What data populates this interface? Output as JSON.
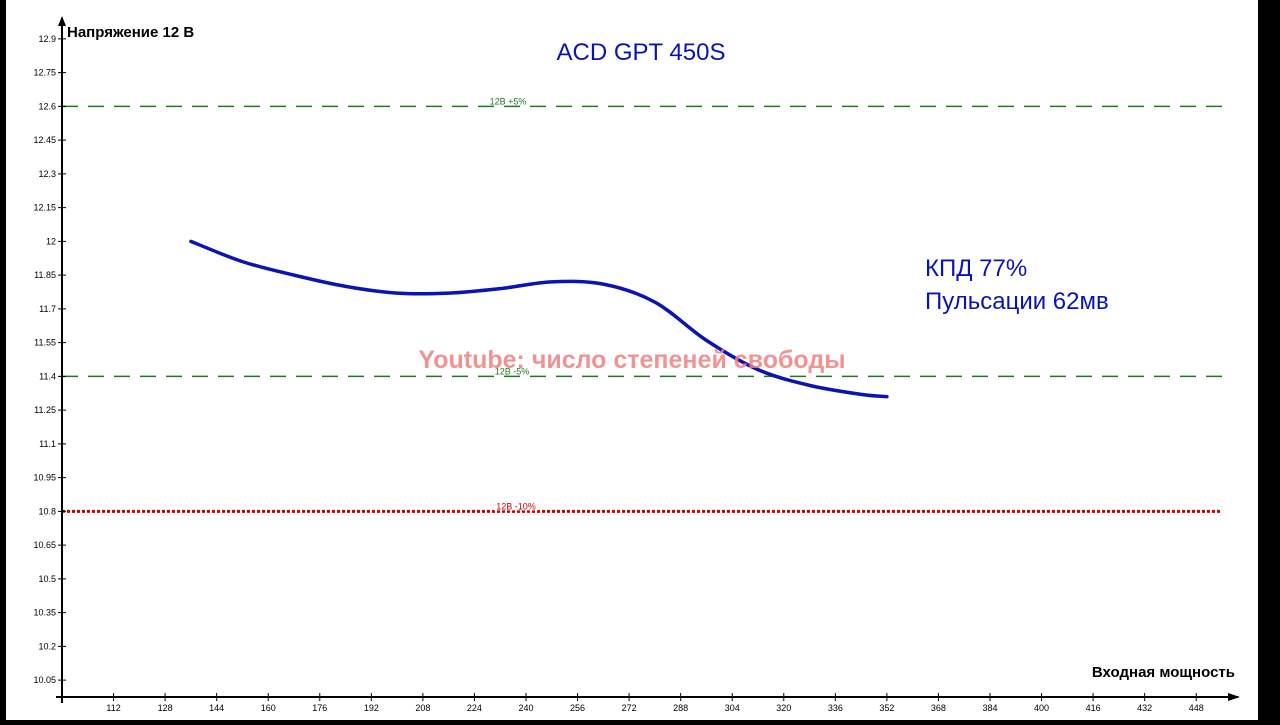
{
  "chart_data": {
    "type": "line",
    "title": "ACD GPT 450S",
    "ylabel": "Напряжение 12 В",
    "xlabel": "Входная мощность",
    "xlim": [
      96,
      456
    ],
    "ylim": [
      9.975,
      12.975
    ],
    "x_ticks": [
      "112",
      "128",
      "144",
      "160",
      "176",
      "192",
      "208",
      "224",
      "240",
      "256",
      "272",
      "288",
      "304",
      "320",
      "336",
      "352",
      "368",
      "384",
      "400",
      "416",
      "432",
      "448"
    ],
    "y_ticks": [
      "12.9",
      "12.75",
      "12.6",
      "12.45",
      "12.3",
      "12.15",
      "12",
      "11.85",
      "11.7",
      "11.55",
      "11.4",
      "11.25",
      "11.1",
      "10.95",
      "10.8",
      "10.65",
      "10.5",
      "10.35",
      "10.2",
      "10.05"
    ],
    "grid": false,
    "series": [
      {
        "color": "#0a14b4",
        "x": [
          136,
          152,
          168,
          184,
          200,
          216,
          232,
          248,
          264,
          280,
          296,
          312,
          328,
          344,
          352
        ],
        "y": [
          12.0,
          11.91,
          11.85,
          11.8,
          11.77,
          11.77,
          11.79,
          11.82,
          11.81,
          11.73,
          11.56,
          11.43,
          11.36,
          11.32,
          11.31
        ]
      }
    ],
    "reference_lines": [
      {
        "y": 12.6,
        "label": "12В +5%",
        "color": "#1f7a1f",
        "style": "dashed"
      },
      {
        "y": 11.4,
        "label": "12В -5%",
        "color": "#1f7a1f",
        "style": "dashed"
      },
      {
        "y": 10.8,
        "label": "12В -10%",
        "color": "#cc0000",
        "style": "dotted"
      }
    ],
    "annotations": {
      "efficiency": "КПД 77%",
      "ripple": "Пульсации 62мв",
      "watermark": "Youtube: число степеней свободы"
    }
  },
  "colors": {
    "background": "#ffffff",
    "frame": "#000000",
    "axis": "#000000",
    "title": "#0a14b4",
    "annotation": "#0a14b4",
    "watermark": "#f08080"
  }
}
